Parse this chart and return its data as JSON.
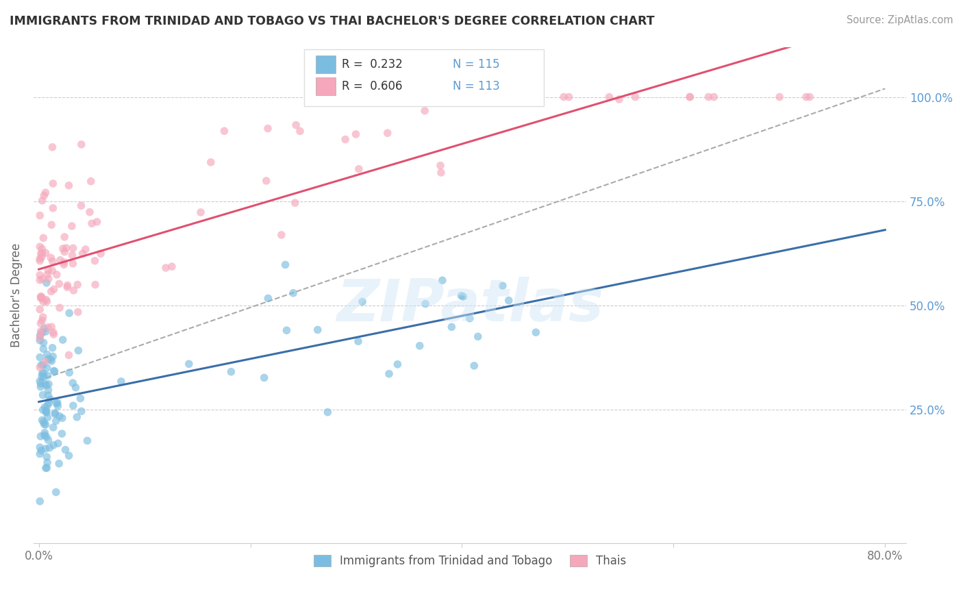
{
  "title": "IMMIGRANTS FROM TRINIDAD AND TOBAGO VS THAI BACHELOR'S DEGREE CORRELATION CHART",
  "source_text": "Source: ZipAtlas.com",
  "ylabel": "Bachelor's Degree",
  "blue_color": "#7bbde0",
  "pink_color": "#f5a8bb",
  "blue_line_color": "#3a6ea8",
  "pink_line_color": "#e05070",
  "dashed_line_color": "#aaaaaa",
  "grid_color": "#cccccc",
  "tick_color": "#5b9bd5",
  "legend_label_blue": "Immigrants from Trinidad and Tobago",
  "legend_label_pink": "Thais",
  "legend_R_blue": "R =  0.232",
  "legend_N_blue": "N = 115",
  "legend_R_pink": "R =  0.606",
  "legend_N_pink": "N = 113",
  "watermark_text": "ZIPatlas",
  "xlim": [
    -0.005,
    0.82
  ],
  "ylim": [
    -0.07,
    1.12
  ],
  "xticks": [
    0.0,
    0.2,
    0.4,
    0.6,
    0.8
  ],
  "xticklabels": [
    "0.0%",
    "",
    "",
    "",
    "80.0%"
  ],
  "yticks": [
    0.0,
    0.25,
    0.5,
    0.75,
    1.0
  ],
  "yticklabels": [
    "",
    "25.0%",
    "50.0%",
    "75.0%",
    "100.0%"
  ],
  "blue_line_x": [
    0.0,
    0.8
  ],
  "blue_line_y": [
    0.28,
    0.58
  ],
  "pink_line_x": [
    0.0,
    0.22
  ],
  "pink_line_y": [
    0.6,
    0.82
  ],
  "dash_line_x": [
    0.0,
    0.8
  ],
  "dash_line_y": [
    0.32,
    1.02
  ]
}
